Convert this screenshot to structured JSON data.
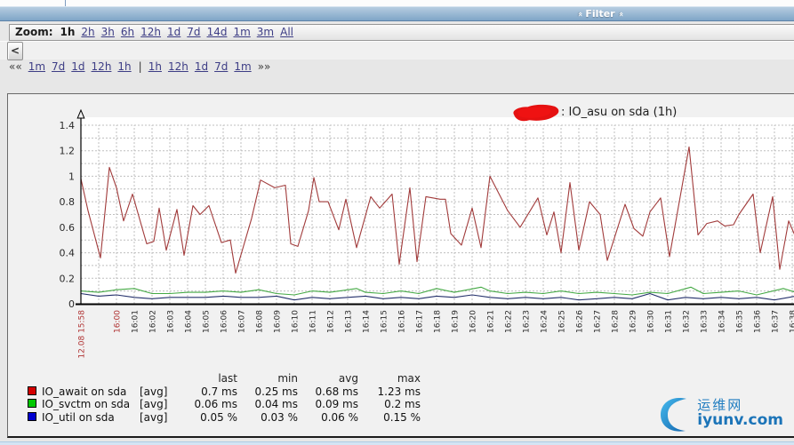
{
  "filter": {
    "label": "Filter",
    "chevron": "«"
  },
  "toolbar": {
    "zoom_label": "Zoom:",
    "selected": "1h",
    "zoom_options": [
      "2h",
      "3h",
      "6h",
      "12h",
      "1d",
      "7d",
      "14d",
      "1m",
      "3m",
      "All"
    ]
  },
  "scrollbar": {
    "left_arrow": "<"
  },
  "pager": {
    "prev_symbol": "««",
    "prev_links": [
      "1m",
      "7d",
      "1d",
      "12h",
      "1h"
    ],
    "divider": "|",
    "next_links": [
      "1h",
      "12h",
      "1d",
      "7d",
      "1m"
    ],
    "next_symbol": "»»"
  },
  "chart_data": {
    "type": "line",
    "title": ": IO_asu on sda (1h)",
    "title_note": "host name hidden by red scribble",
    "ylim": [
      0,
      1.4
    ],
    "y_ticks": [
      0,
      0.2,
      0.4,
      0.6,
      0.8,
      1,
      1.2,
      1.4
    ],
    "x_unit": "minutes since 12.08 15:58",
    "grid": "dashed",
    "legend_position": "bottom",
    "x_labels": [
      {
        "t": 0,
        "text": "12.08 15:58",
        "highlight": true
      },
      {
        "t": 2,
        "text": "16:00",
        "highlight": true
      },
      {
        "t": 3,
        "text": "16:01"
      },
      {
        "t": 4,
        "text": "16:02"
      },
      {
        "t": 5,
        "text": "16:03"
      },
      {
        "t": 6,
        "text": "16:04"
      },
      {
        "t": 7,
        "text": "16:05"
      },
      {
        "t": 8,
        "text": "16:06"
      },
      {
        "t": 9,
        "text": "16:07"
      },
      {
        "t": 10,
        "text": "16:08"
      },
      {
        "t": 11,
        "text": "16:09"
      },
      {
        "t": 12,
        "text": "16:10"
      },
      {
        "t": 13,
        "text": "16:11"
      },
      {
        "t": 14,
        "text": "16:12"
      },
      {
        "t": 15,
        "text": "16:13"
      },
      {
        "t": 16,
        "text": "16:14"
      },
      {
        "t": 17,
        "text": "16:15"
      },
      {
        "t": 18,
        "text": "16:16"
      },
      {
        "t": 19,
        "text": "16:17"
      },
      {
        "t": 20,
        "text": "16:18"
      },
      {
        "t": 21,
        "text": "16:19"
      },
      {
        "t": 22,
        "text": "16:20"
      },
      {
        "t": 23,
        "text": "16:21"
      },
      {
        "t": 24,
        "text": "16:22"
      },
      {
        "t": 25,
        "text": "16:23"
      },
      {
        "t": 26,
        "text": "16:24"
      },
      {
        "t": 27,
        "text": "16:25"
      },
      {
        "t": 28,
        "text": "16:26"
      },
      {
        "t": 29,
        "text": "16:27"
      },
      {
        "t": 30,
        "text": "16:28"
      },
      {
        "t": 31,
        "text": "16:29"
      },
      {
        "t": 32,
        "text": "16:30"
      },
      {
        "t": 33,
        "text": "16:31"
      },
      {
        "t": 34,
        "text": "16:32"
      },
      {
        "t": 35,
        "text": "16:33"
      },
      {
        "t": 36,
        "text": "16:34"
      },
      {
        "t": 37,
        "text": "16:35"
      },
      {
        "t": 38,
        "text": "16:36"
      },
      {
        "t": 39,
        "text": "16:37"
      },
      {
        "t": 40,
        "text": "16:38"
      }
    ],
    "series": [
      {
        "name": "IO_await on sda",
        "color": "#a13b3b",
        "unit": "ms",
        "points": [
          [
            0,
            0.98
          ],
          [
            0.4,
            0.73
          ],
          [
            1.1,
            0.36
          ],
          [
            1.6,
            1.07
          ],
          [
            2,
            0.91
          ],
          [
            2.4,
            0.65
          ],
          [
            2.9,
            0.86
          ],
          [
            3.7,
            0.47
          ],
          [
            4.1,
            0.49
          ],
          [
            4.4,
            0.75
          ],
          [
            4.8,
            0.42
          ],
          [
            5.4,
            0.74
          ],
          [
            5.8,
            0.38
          ],
          [
            6.3,
            0.77
          ],
          [
            6.7,
            0.7
          ],
          [
            7.2,
            0.77
          ],
          [
            7.9,
            0.48
          ],
          [
            8.4,
            0.5
          ],
          [
            8.7,
            0.24
          ],
          [
            9.6,
            0.67
          ],
          [
            10.1,
            0.97
          ],
          [
            10.9,
            0.91
          ],
          [
            11.5,
            0.93
          ],
          [
            11.8,
            0.47
          ],
          [
            12.2,
            0.45
          ],
          [
            12.8,
            0.73
          ],
          [
            13.1,
            0.99
          ],
          [
            13.4,
            0.8
          ],
          [
            13.9,
            0.8
          ],
          [
            14.5,
            0.58
          ],
          [
            14.9,
            0.82
          ],
          [
            15.5,
            0.44
          ],
          [
            16.3,
            0.84
          ],
          [
            16.8,
            0.75
          ],
          [
            17.5,
            0.86
          ],
          [
            17.9,
            0.31
          ],
          [
            18.5,
            0.91
          ],
          [
            18.9,
            0.33
          ],
          [
            19.4,
            0.84
          ],
          [
            20.2,
            0.82
          ],
          [
            20.5,
            0.82
          ],
          [
            20.8,
            0.55
          ],
          [
            21.4,
            0.46
          ],
          [
            22,
            0.75
          ],
          [
            22.5,
            0.44
          ],
          [
            23,
            1
          ],
          [
            24,
            0.73
          ],
          [
            24.7,
            0.6
          ],
          [
            25.7,
            0.83
          ],
          [
            26.2,
            0.54
          ],
          [
            26.6,
            0.72
          ],
          [
            27,
            0.4
          ],
          [
            27.5,
            0.95
          ],
          [
            28,
            0.42
          ],
          [
            28.6,
            0.8
          ],
          [
            29.2,
            0.7
          ],
          [
            29.6,
            0.34
          ],
          [
            30.6,
            0.78
          ],
          [
            31.1,
            0.59
          ],
          [
            31.6,
            0.53
          ],
          [
            32,
            0.72
          ],
          [
            32.6,
            0.83
          ],
          [
            33.1,
            0.37
          ],
          [
            34.2,
            1.23
          ],
          [
            34.7,
            0.54
          ],
          [
            35.2,
            0.63
          ],
          [
            35.8,
            0.65
          ],
          [
            36.2,
            0.61
          ],
          [
            36.7,
            0.62
          ],
          [
            37,
            0.7
          ],
          [
            37.8,
            0.86
          ],
          [
            38.2,
            0.4
          ],
          [
            38.9,
            0.84
          ],
          [
            39.3,
            0.27
          ],
          [
            39.8,
            0.65
          ],
          [
            40.2,
            0.52
          ]
        ]
      },
      {
        "name": "IO_svctm on sda",
        "color": "#45a945",
        "unit": "ms",
        "points": [
          [
            0,
            0.1
          ],
          [
            1,
            0.09
          ],
          [
            2,
            0.11
          ],
          [
            3,
            0.12
          ],
          [
            4,
            0.08
          ],
          [
            5,
            0.08
          ],
          [
            6,
            0.09
          ],
          [
            7,
            0.09
          ],
          [
            8,
            0.1
          ],
          [
            9,
            0.09
          ],
          [
            10,
            0.11
          ],
          [
            11,
            0.08
          ],
          [
            12,
            0.07
          ],
          [
            13,
            0.1
          ],
          [
            14,
            0.09
          ],
          [
            15.5,
            0.12
          ],
          [
            16,
            0.09
          ],
          [
            17,
            0.08
          ],
          [
            18,
            0.1
          ],
          [
            19,
            0.08
          ],
          [
            20,
            0.12
          ],
          [
            21,
            0.09
          ],
          [
            22.5,
            0.13
          ],
          [
            23,
            0.1
          ],
          [
            24,
            0.08
          ],
          [
            25,
            0.09
          ],
          [
            26,
            0.08
          ],
          [
            27,
            0.1
          ],
          [
            28,
            0.08
          ],
          [
            29,
            0.09
          ],
          [
            30,
            0.08
          ],
          [
            31,
            0.07
          ],
          [
            32,
            0.09
          ],
          [
            33,
            0.08
          ],
          [
            34.3,
            0.13
          ],
          [
            35,
            0.08
          ],
          [
            36,
            0.09
          ],
          [
            37,
            0.1
          ],
          [
            38,
            0.07
          ],
          [
            39.5,
            0.12
          ],
          [
            40.2,
            0.09
          ]
        ]
      },
      {
        "name": "IO_util on sda",
        "color": "#24306b",
        "unit": "%",
        "points": [
          [
            0,
            0.08
          ],
          [
            1,
            0.06
          ],
          [
            2,
            0.07
          ],
          [
            3,
            0.05
          ],
          [
            4,
            0.04
          ],
          [
            5,
            0.05
          ],
          [
            6,
            0.05
          ],
          [
            7,
            0.05
          ],
          [
            8,
            0.06
          ],
          [
            9,
            0.05
          ],
          [
            10,
            0.05
          ],
          [
            11,
            0.06
          ],
          [
            12,
            0.03
          ],
          [
            13,
            0.05
          ],
          [
            14,
            0.04
          ],
          [
            15,
            0.05
          ],
          [
            16,
            0.06
          ],
          [
            17,
            0.04
          ],
          [
            18,
            0.05
          ],
          [
            19,
            0.04
          ],
          [
            20,
            0.06
          ],
          [
            21,
            0.05
          ],
          [
            22,
            0.07
          ],
          [
            23,
            0.05
          ],
          [
            24,
            0.04
          ],
          [
            25,
            0.05
          ],
          [
            26,
            0.04
          ],
          [
            27,
            0.05
          ],
          [
            28,
            0.03
          ],
          [
            29,
            0.04
          ],
          [
            30,
            0.05
          ],
          [
            31,
            0.04
          ],
          [
            32,
            0.08
          ],
          [
            33,
            0.03
          ],
          [
            34,
            0.05
          ],
          [
            35,
            0.04
          ],
          [
            36,
            0.05
          ],
          [
            37,
            0.04
          ],
          [
            38,
            0.05
          ],
          [
            39,
            0.03
          ],
          [
            40.2,
            0.06
          ]
        ]
      }
    ]
  },
  "legend": {
    "headers": [
      "last",
      "min",
      "avg",
      "max"
    ],
    "rows": [
      {
        "color": "#d40000",
        "label": "IO_await on sda",
        "fn": "[avg]",
        "last": "0.7 ms",
        "min": "0.25 ms",
        "avg": "0.68 ms",
        "max": "1.23 ms"
      },
      {
        "color": "#00c800",
        "label": "IO_svctm on sda",
        "fn": "[avg]",
        "last": "0.06 ms",
        "min": "0.04 ms",
        "avg": "0.09 ms",
        "max": "0.2 ms"
      },
      {
        "color": "#0000d0",
        "label": "IO_util on sda",
        "fn": "[avg]",
        "last": "0.05 %",
        "min": "0.03 %",
        "avg": "0.06 %",
        "max": "0.15 %"
      }
    ]
  },
  "watermark": {
    "site_cn": "运维网",
    "site_domain": "iyunv.com",
    "brand_color": "#1b74b8"
  }
}
